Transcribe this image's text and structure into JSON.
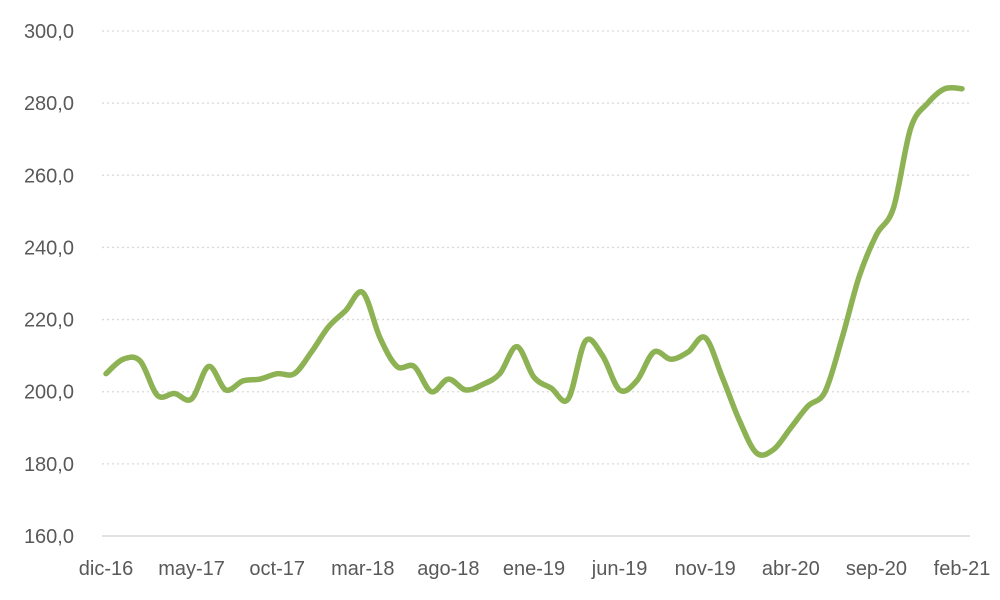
{
  "chart_data": {
    "type": "line",
    "title": "",
    "xlabel": "",
    "ylabel": "",
    "ylim": [
      160,
      300
    ],
    "y_ticks": [
      "160,0",
      "180,0",
      "200,0",
      "220,0",
      "240,0",
      "260,0",
      "280,0",
      "300,0"
    ],
    "y_tick_values": [
      160,
      180,
      200,
      220,
      240,
      260,
      280,
      300
    ],
    "x_tick_labels": [
      "dic-16",
      "may-17",
      "oct-17",
      "mar-18",
      "ago-18",
      "ene-19",
      "jun-19",
      "nov-19",
      "abr-20",
      "sep-20",
      "feb-21"
    ],
    "grid": "horizontal dotted",
    "legend": "none",
    "colors": {
      "line": "#8db254",
      "grid": "#d9d9d9",
      "text": "#595959"
    },
    "x": [
      "dic-16",
      "ene-17",
      "feb-17",
      "mar-17",
      "abr-17",
      "may-17",
      "jun-17",
      "jul-17",
      "ago-17",
      "sep-17",
      "oct-17",
      "nov-17",
      "dic-17",
      "ene-18",
      "feb-18",
      "mar-18",
      "abr-18",
      "may-18",
      "jun-18",
      "jul-18",
      "ago-18",
      "sep-18",
      "oct-18",
      "nov-18",
      "dic-18",
      "ene-19",
      "feb-19",
      "mar-19",
      "abr-19",
      "may-19",
      "jun-19",
      "jul-19",
      "ago-19",
      "sep-19",
      "oct-19",
      "nov-19",
      "dic-19",
      "ene-20",
      "feb-20",
      "mar-20",
      "abr-20",
      "may-20",
      "jun-20",
      "jul-20",
      "ago-20",
      "sep-20",
      "oct-20",
      "nov-20",
      "dic-20",
      "ene-21",
      "feb-21"
    ],
    "series": [
      {
        "values": [
          205.0,
          209.0,
          208.5,
          199.0,
          199.5,
          198.0,
          207.0,
          200.5,
          203.0,
          203.5,
          205.0,
          205.0,
          211.0,
          218.0,
          222.5,
          227.5,
          215.0,
          207.0,
          207.0,
          200.0,
          203.5,
          200.5,
          202.0,
          205.0,
          212.5,
          204.0,
          201.0,
          198.0,
          214.0,
          210.0,
          200.5,
          203.0,
          211.0,
          209.0,
          211.0,
          215.0,
          204.0,
          192.0,
          183.0,
          184.0,
          190.0,
          196.0,
          200.0,
          215.0,
          232.0,
          243.5,
          251.0,
          273.0,
          280.0,
          284.0,
          284.0
        ]
      }
    ]
  }
}
